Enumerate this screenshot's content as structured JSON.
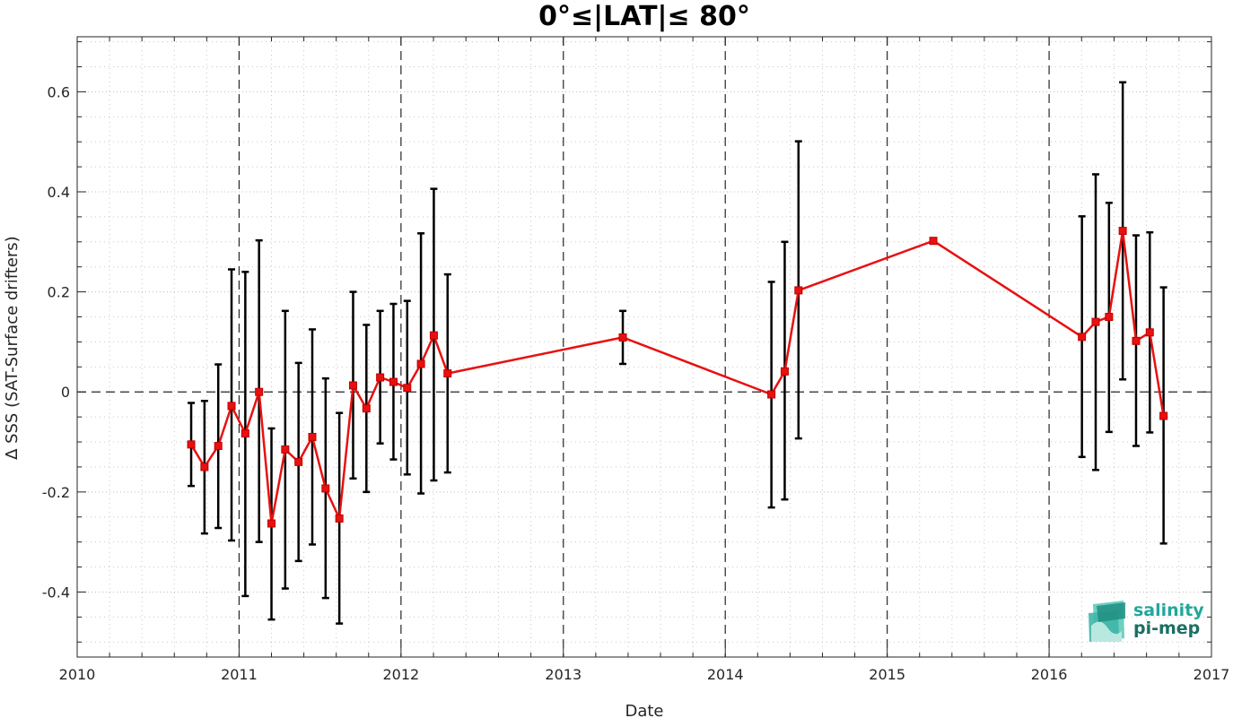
{
  "chart_data": {
    "type": "line",
    "title": "0°≤|LAT|≤ 80°",
    "xlabel": "Date",
    "ylabel": "∆ SSS (SAT-Surface drifters)",
    "xlim": [
      "2010-01-01",
      "2017-01-01"
    ],
    "ylim": [
      -0.53,
      0.71
    ],
    "x_ticks": [
      "2010",
      "2011",
      "2012",
      "2013",
      "2014",
      "2015",
      "2016",
      "2017"
    ],
    "y_ticks": [
      "-0.4",
      "-0.2",
      "0",
      "0.2",
      "0.4",
      "0.6"
    ],
    "grid": true,
    "series": [
      {
        "color": "#e81010",
        "errorbar_color": "#000000",
        "points": [
          {
            "date": "2010-09-15",
            "y": -0.105,
            "low": -0.188,
            "high": -0.022
          },
          {
            "date": "2010-10-15",
            "y": -0.15,
            "low": -0.283,
            "high": -0.018
          },
          {
            "date": "2010-11-15",
            "y": -0.108,
            "low": -0.272,
            "high": 0.055
          },
          {
            "date": "2010-12-15",
            "y": -0.028,
            "low": -0.297,
            "high": 0.245
          },
          {
            "date": "2011-01-15",
            "y": -0.083,
            "low": -0.408,
            "high": 0.24
          },
          {
            "date": "2011-02-15",
            "y": 0.0,
            "low": -0.3,
            "high": 0.303
          },
          {
            "date": "2011-03-15",
            "y": -0.263,
            "low": -0.455,
            "high": -0.073
          },
          {
            "date": "2011-04-15",
            "y": -0.115,
            "low": -0.393,
            "high": 0.162
          },
          {
            "date": "2011-05-15",
            "y": -0.14,
            "low": -0.338,
            "high": 0.058
          },
          {
            "date": "2011-06-15",
            "y": -0.09,
            "low": -0.305,
            "high": 0.125
          },
          {
            "date": "2011-07-15",
            "y": -0.193,
            "low": -0.412,
            "high": 0.027
          },
          {
            "date": "2011-08-15",
            "y": -0.253,
            "low": -0.463,
            "high": -0.042
          },
          {
            "date": "2011-09-15",
            "y": 0.013,
            "low": -0.173,
            "high": 0.2
          },
          {
            "date": "2011-10-15",
            "y": -0.033,
            "low": -0.2,
            "high": 0.134
          },
          {
            "date": "2011-11-15",
            "y": 0.029,
            "low": -0.103,
            "high": 0.162
          },
          {
            "date": "2011-12-15",
            "y": 0.02,
            "low": -0.135,
            "high": 0.176
          },
          {
            "date": "2012-01-15",
            "y": 0.008,
            "low": -0.165,
            "high": 0.182
          },
          {
            "date": "2012-02-15",
            "y": 0.056,
            "low": -0.203,
            "high": 0.317
          },
          {
            "date": "2012-03-15",
            "y": 0.113,
            "low": -0.177,
            "high": 0.406
          },
          {
            "date": "2012-04-15",
            "y": 0.037,
            "low": -0.161,
            "high": 0.235
          },
          {
            "date": "2013-05-15",
            "y": 0.109,
            "low": 0.056,
            "high": 0.162
          },
          {
            "date": "2014-04-15",
            "y": -0.005,
            "low": -0.231,
            "high": 0.22
          },
          {
            "date": "2014-05-15",
            "y": 0.041,
            "low": -0.215,
            "high": 0.3
          },
          {
            "date": "2014-06-15",
            "y": 0.203,
            "low": -0.093,
            "high": 0.501
          },
          {
            "date": "2015-04-15",
            "y": 0.302,
            "low": null,
            "high": null
          },
          {
            "date": "2016-03-15",
            "y": 0.11,
            "low": -0.13,
            "high": 0.351
          },
          {
            "date": "2016-04-15",
            "y": 0.14,
            "low": -0.156,
            "high": 0.435
          },
          {
            "date": "2016-05-15",
            "y": 0.15,
            "low": -0.08,
            "high": 0.378
          },
          {
            "date": "2016-06-15",
            "y": 0.322,
            "low": 0.025,
            "high": 0.619
          },
          {
            "date": "2016-07-15",
            "y": 0.102,
            "low": -0.108,
            "high": 0.313
          },
          {
            "date": "2016-08-15",
            "y": 0.119,
            "low": -0.081,
            "high": 0.319
          },
          {
            "date": "2016-09-15",
            "y": -0.048,
            "low": -0.303,
            "high": 0.209
          }
        ]
      }
    ]
  },
  "logo": {
    "line1": "salinity",
    "line2": "pi-mep"
  }
}
